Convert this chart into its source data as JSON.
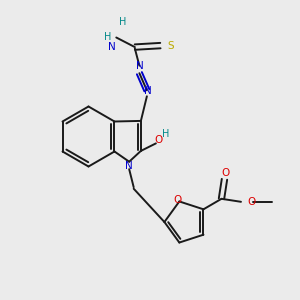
{
  "bg_color": "#ebebeb",
  "bond_color": "#1a1a1a",
  "N_color": "#0000cc",
  "O_color": "#dd0000",
  "S_color": "#bbaa00",
  "H_color": "#008888",
  "figsize": [
    3.0,
    3.0
  ],
  "dpi": 100,
  "xlim": [
    0,
    10
  ],
  "ylim": [
    0,
    10
  ]
}
